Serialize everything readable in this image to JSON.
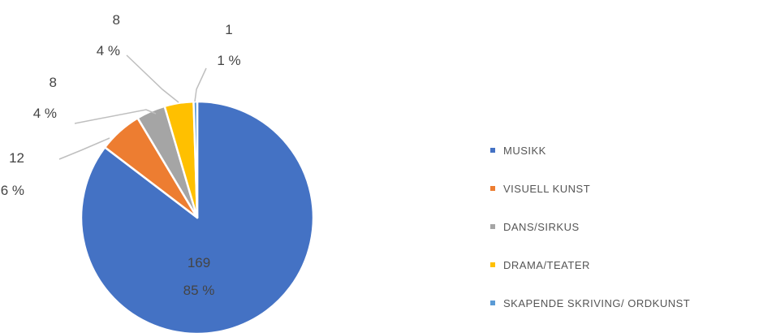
{
  "chart_data": {
    "type": "pie",
    "categories": [
      "MUSIKK",
      "VISUELL KUNST",
      "DANS/SIRKUS",
      "DRAMA/TEATER",
      "SKAPENDE SKRIVING/ ORDKUNST"
    ],
    "values": [
      169,
      12,
      8,
      8,
      1
    ],
    "percent_labels": [
      "85 %",
      "6 %",
      "4 %",
      "4 %",
      "1 %"
    ],
    "colors": [
      "#4472c4",
      "#ed7d31",
      "#a5a5a5",
      "#ffc000",
      "#5b9bd5"
    ],
    "start_angle_deg": 0,
    "direction": "clockwise",
    "legend_position": "right"
  }
}
